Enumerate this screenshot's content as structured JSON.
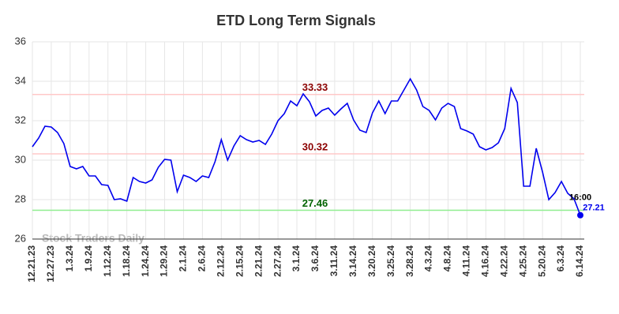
{
  "chart_data": {
    "type": "line",
    "title": "ETD Long Term Signals",
    "watermark": "Stock Traders Daily",
    "categories": [
      "12.21.23",
      null,
      null,
      "12.27.23",
      null,
      null,
      "1.3.24",
      null,
      null,
      "1.9.24",
      null,
      null,
      "1.12.24",
      null,
      null,
      "1.18.24",
      null,
      null,
      "1.24.24",
      null,
      null,
      "1.29.24",
      null,
      null,
      "2.1.24",
      null,
      null,
      "2.6.24",
      null,
      null,
      "2.12.24",
      null,
      null,
      "2.15.24",
      null,
      null,
      "2.21.24",
      null,
      null,
      "2.27.24",
      null,
      null,
      "3.1.24",
      null,
      null,
      "3.6.24",
      null,
      null,
      "3.11.24",
      null,
      null,
      "3.14.24",
      null,
      null,
      "3.20.24",
      null,
      null,
      "3.25.24",
      null,
      null,
      "3.28.24",
      null,
      null,
      "4.3.24",
      null,
      null,
      "4.8.24",
      null,
      null,
      "4.11.24",
      null,
      null,
      "4.16.24",
      null,
      null,
      "4.22.24",
      null,
      null,
      "4.25.24",
      null,
      null,
      "5.20.24",
      null,
      null,
      "6.3.24",
      null,
      null,
      "6.14.24"
    ],
    "series": [
      {
        "name": "ETD",
        "color": "#0000ee",
        "values": [
          30.68,
          31.12,
          31.72,
          31.68,
          31.4,
          30.84,
          29.68,
          29.56,
          29.68,
          29.2,
          29.2,
          28.76,
          28.72,
          28.0,
          28.04,
          27.92,
          29.12,
          28.92,
          28.84,
          29.0,
          29.64,
          30.04,
          30.0,
          28.4,
          29.24,
          29.12,
          28.92,
          29.2,
          29.12,
          29.92,
          31.04,
          30.0,
          30.72,
          31.24,
          31.04,
          30.92,
          31.0,
          30.8,
          31.32,
          32.0,
          32.36,
          33.0,
          32.76,
          33.36,
          32.96,
          32.24,
          32.52,
          32.64,
          32.28,
          32.6,
          32.88,
          32.04,
          31.52,
          31.4,
          32.4,
          33.0,
          32.36,
          33.0,
          33.0,
          33.56,
          34.12,
          33.56,
          32.72,
          32.52,
          32.04,
          32.64,
          32.88,
          32.72,
          31.6,
          31.48,
          31.32,
          30.68,
          30.52,
          30.64,
          30.88,
          31.6,
          33.64,
          32.92,
          28.68,
          28.68,
          30.6,
          29.4,
          28.0,
          28.36,
          28.92,
          28.32,
          28.04,
          27.21
        ]
      }
    ],
    "last_label": "16:00",
    "hlines": [
      {
        "value": 33.33,
        "color": "#ffc8c8",
        "label_color": "#8b0000"
      },
      {
        "value": 30.32,
        "color": "#ffc8c8",
        "label_color": "#8b0000"
      },
      {
        "value": 27.46,
        "color": "#90ee90",
        "label_color": "#006400"
      }
    ],
    "ylim": [
      26,
      36
    ],
    "yticks": [
      26,
      28,
      30,
      32,
      34,
      36
    ],
    "grid": true
  }
}
